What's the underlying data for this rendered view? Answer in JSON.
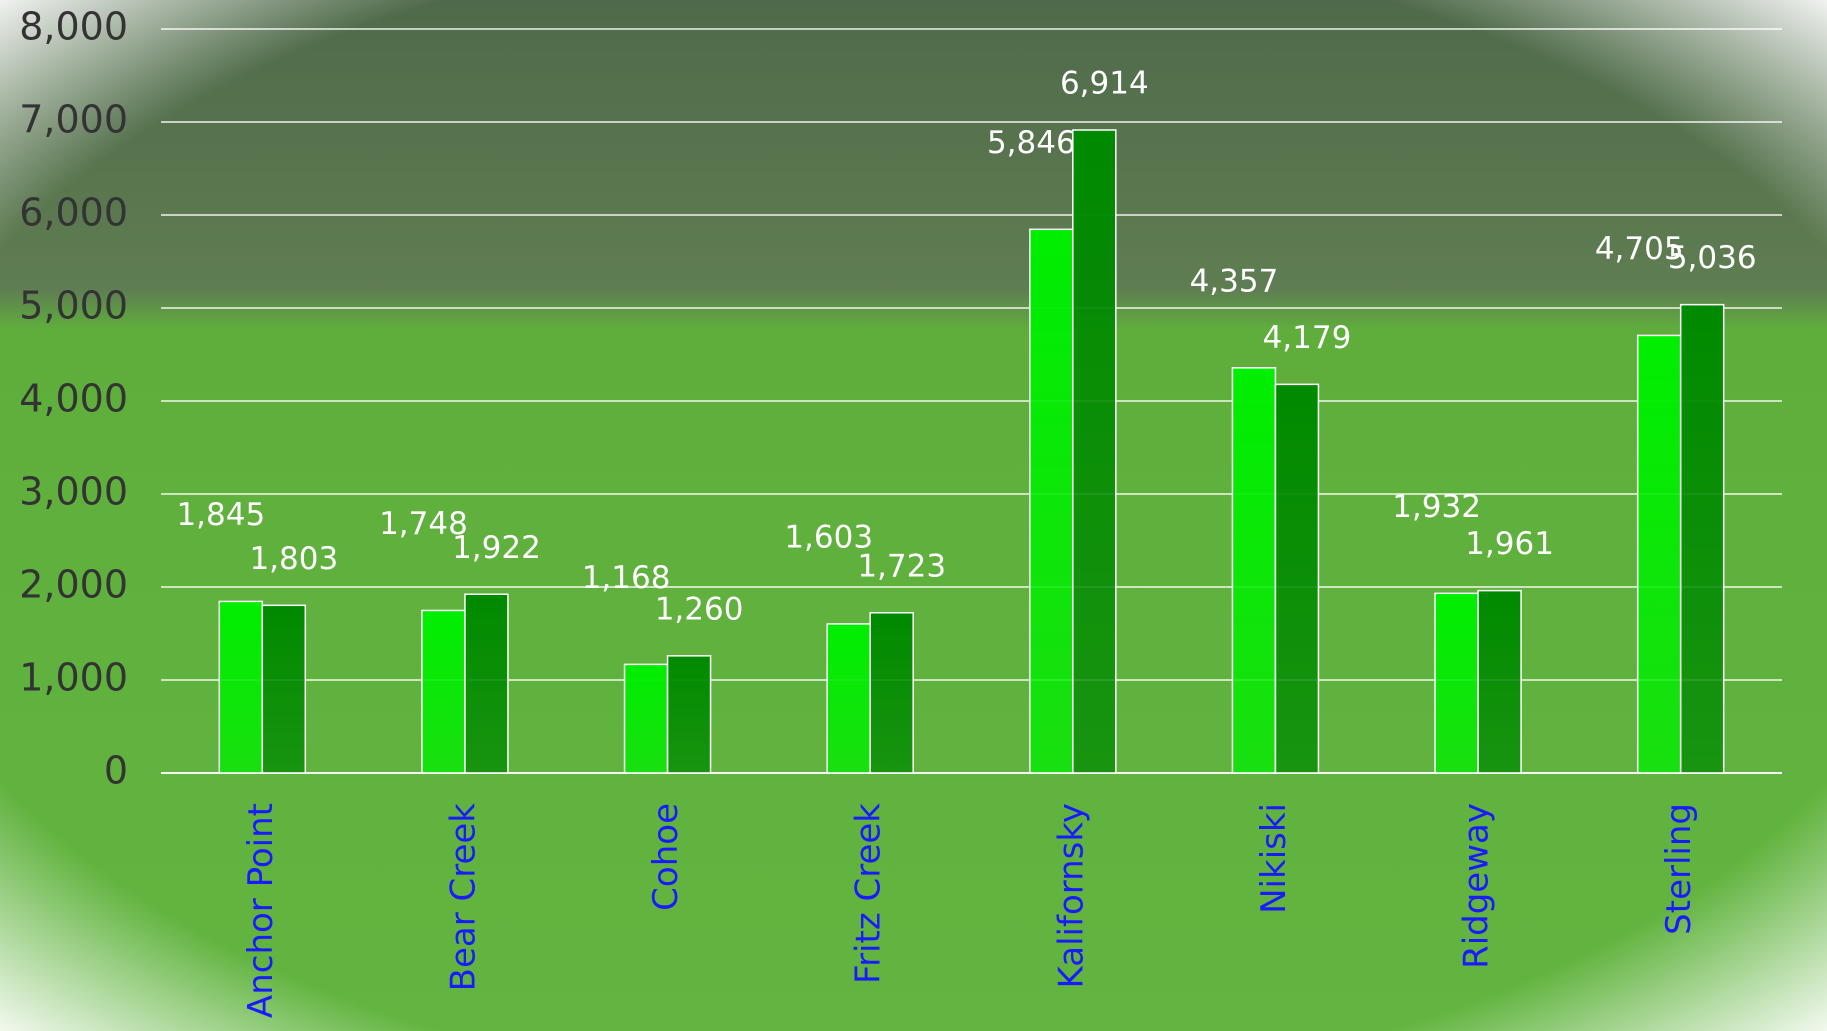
{
  "chart_data": {
    "type": "bar",
    "categories": [
      "Anchor Point",
      "Bear Creek",
      "Cohoe",
      "Fritz Creek",
      "Kalifornsky",
      "Nikiski",
      "Ridgeway",
      "Sterling"
    ],
    "series": [
      {
        "color": "#00ee00",
        "values": [
          1845,
          1748,
          1168,
          1603,
          5846,
          4357,
          1932,
          4705
        ],
        "value_labels": [
          "1,845",
          "1,748",
          "1,168",
          "1,603",
          "5,846",
          "4,357",
          "1,932",
          "4,705"
        ]
      },
      {
        "color": "#008a00",
        "values": [
          1803,
          1922,
          1260,
          1723,
          6914,
          4179,
          1961,
          5036
        ],
        "value_labels": [
          "1,803",
          "1,922",
          "1,260",
          "1,723",
          "6,914",
          "4,179",
          "1,961",
          "5,036"
        ]
      }
    ],
    "ylim": [
      0,
      8000
    ],
    "yticks": [
      0,
      {
        "value": 1000,
        "label": "1,000"
      },
      {
        "value": 2000,
        "label": "2,000"
      },
      {
        "value": 3000,
        "label": "3,000"
      },
      {
        "value": 4000,
        "label": "4,000"
      },
      {
        "value": 5000,
        "label": "5,000"
      },
      {
        "value": 6000,
        "label": "6,000"
      },
      {
        "value": 7000,
        "label": "7,000"
      },
      {
        "value": 8000,
        "label": "8,000"
      }
    ],
    "grid": true
  }
}
